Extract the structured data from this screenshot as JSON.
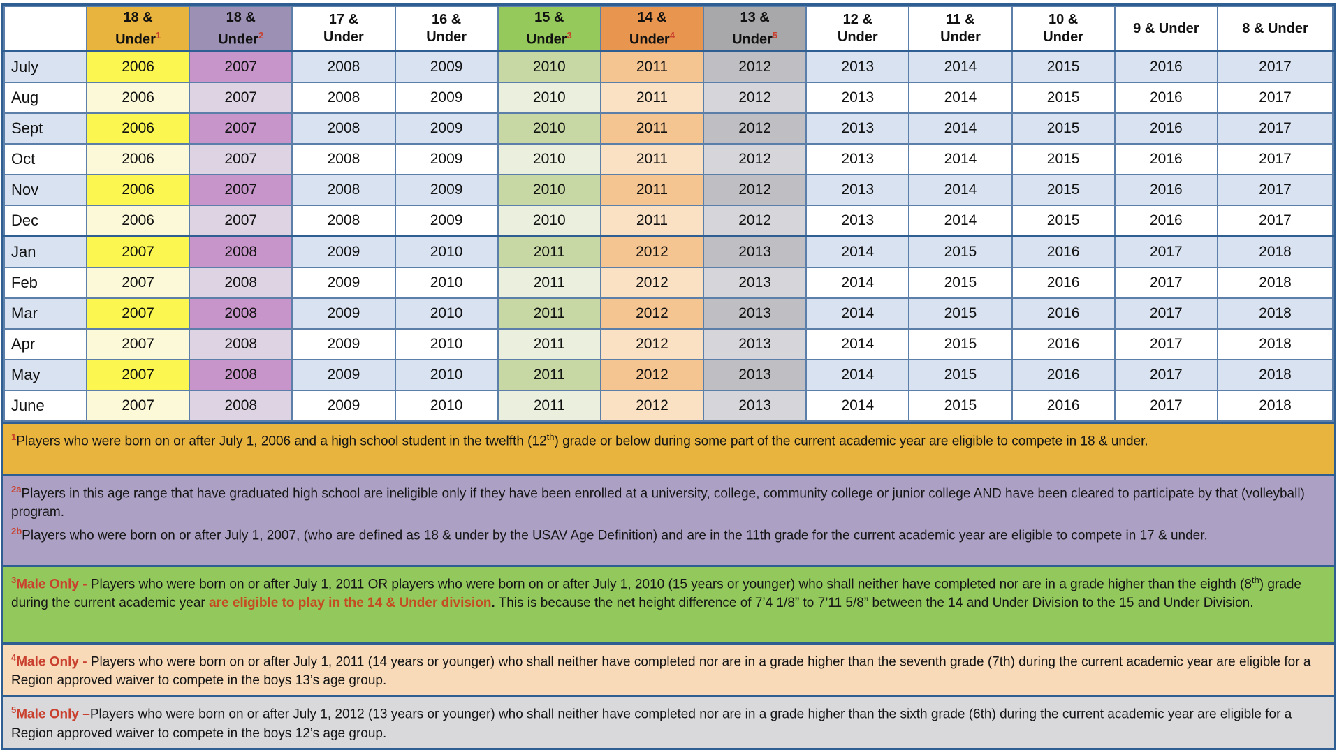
{
  "colors": {
    "border_thin": "#5B7FA8",
    "border_thick": "#2F5F92",
    "stripe_blue": "#D9E2F0",
    "white": "#FFFFFF",
    "red_marker": "#C9402E",
    "red_link": "#C44B22"
  },
  "table": {
    "months": [
      "July",
      "Aug",
      "Sept",
      "Oct",
      "Nov",
      "Dec",
      "Jan",
      "Feb",
      "Mar",
      "Apr",
      "May",
      "June"
    ],
    "columns": [
      {
        "header_line1": "18 &",
        "header_line2": "Under",
        "footnote_ref": "1",
        "header_bg": "#E8B43D",
        "cell_bg_odd": "#FBF750",
        "cell_bg_even": "#FBF9D8",
        "year_jul_dec": "2006",
        "year_jan_jun": "2007"
      },
      {
        "header_line1": "18 &",
        "header_line2": "Under",
        "footnote_ref": "2",
        "header_bg": "#9C91B5",
        "cell_bg_odd": "#C795C9",
        "cell_bg_even": "#DDD3E3",
        "year_jul_dec": "2007",
        "year_jan_jun": "2008"
      },
      {
        "header_line1": "17 &",
        "header_line2": "Under",
        "footnote_ref": "",
        "header_bg": "#FFFFFF",
        "cell_bg_odd": "#D9E2F0",
        "cell_bg_even": "#FFFFFF",
        "year_jul_dec": "2008",
        "year_jan_jun": "2009"
      },
      {
        "header_line1": "16 &",
        "header_line2": "Under",
        "footnote_ref": "",
        "header_bg": "#FFFFFF",
        "cell_bg_odd": "#D9E2F0",
        "cell_bg_even": "#FFFFFF",
        "year_jul_dec": "2009",
        "year_jan_jun": "2010"
      },
      {
        "header_line1": "15 &",
        "header_line2": "Under",
        "footnote_ref": "3",
        "header_bg": "#95C95B",
        "cell_bg_odd": "#C7D8A4",
        "cell_bg_even": "#EAF0DD",
        "year_jul_dec": "2010",
        "year_jan_jun": "2011"
      },
      {
        "header_line1": "14 &",
        "header_line2": "Under",
        "footnote_ref": "4",
        "header_bg": "#E8954F",
        "cell_bg_odd": "#F4C491",
        "cell_bg_even": "#FAE1C4",
        "year_jul_dec": "2011",
        "year_jan_jun": "2012"
      },
      {
        "header_line1": "13 &",
        "header_line2": "Under",
        "footnote_ref": "5",
        "header_bg": "#A8A8AA",
        "cell_bg_odd": "#BFBFC3",
        "cell_bg_even": "#D6D6DA",
        "year_jul_dec": "2012",
        "year_jan_jun": "2013"
      },
      {
        "header_line1": "12 &",
        "header_line2": "Under",
        "footnote_ref": "",
        "header_bg": "#FFFFFF",
        "cell_bg_odd": "#D9E2F0",
        "cell_bg_even": "#FFFFFF",
        "year_jul_dec": "2013",
        "year_jan_jun": "2014"
      },
      {
        "header_line1": "11 &",
        "header_line2": "Under",
        "footnote_ref": "",
        "header_bg": "#FFFFFF",
        "cell_bg_odd": "#D9E2F0",
        "cell_bg_even": "#FFFFFF",
        "year_jul_dec": "2014",
        "year_jan_jun": "2015"
      },
      {
        "header_line1": "10 &",
        "header_line2": "Under",
        "footnote_ref": "",
        "header_bg": "#FFFFFF",
        "cell_bg_odd": "#D9E2F0",
        "cell_bg_even": "#FFFFFF",
        "year_jul_dec": "2015",
        "year_jan_jun": "2016"
      },
      {
        "header_line1": "9 & Under",
        "header_line2": "",
        "footnote_ref": "",
        "header_bg": "#FFFFFF",
        "cell_bg_odd": "#D9E2F0",
        "cell_bg_even": "#FFFFFF",
        "year_jul_dec": "2016",
        "year_jan_jun": "2017"
      },
      {
        "header_line1": "8 & Under",
        "header_line2": "",
        "footnote_ref": "",
        "header_bg": "#FFFFFF",
        "cell_bg_odd": "#D9E2F0",
        "cell_bg_even": "#FFFFFF",
        "year_jul_dec": "2017",
        "year_jan_jun": "2018"
      }
    ]
  },
  "footnotes": [
    {
      "id": "1",
      "bg": "#E8B43D",
      "paragraphs": [
        [
          {
            "s": "supred",
            "t": "1"
          },
          {
            "s": "n",
            "t": "Players who were born on or after July 1, 2006 "
          },
          {
            "s": "u",
            "t": "and"
          },
          {
            "s": "n",
            "t": " a high school student in the twelfth (12"
          },
          {
            "s": "sup",
            "t": "th"
          },
          {
            "s": "n",
            "t": ") grade or below during some part of the current academic year are eligible to compete in 18 & under."
          }
        ]
      ]
    },
    {
      "id": "2",
      "bg": "#ACA1C4",
      "paragraphs": [
        [
          {
            "s": "supred",
            "t": "2a"
          },
          {
            "s": "n",
            "t": "Players in this age range that have graduated high school are ineligible only if they have been enrolled at a university, college, community college or junior college AND have been cleared to participate by that (volleyball) program."
          }
        ],
        [
          {
            "s": "supred",
            "t": "2b"
          },
          {
            "s": "n",
            "t": "Players who were born on or after July 1, 2007, (who are defined as 18 & under by the USAV Age Definition) and are in the 11th grade for the current academic year are eligible to compete in 17 & under."
          }
        ]
      ]
    },
    {
      "id": "3",
      "bg": "#92C85C",
      "paragraphs": [
        [
          {
            "s": "supred",
            "t": "3"
          },
          {
            "s": "rb",
            "t": "Male Only - "
          },
          {
            "s": "n",
            "t": "Players who were born on or after July 1, 2011 "
          },
          {
            "s": "u",
            "t": "OR"
          },
          {
            "s": "n",
            "t": " players who were born on or after July 1, 2010 (15 years or younger) who shall neither have completed nor are in a grade higher than the eighth (8"
          },
          {
            "s": "sup",
            "t": "th"
          },
          {
            "s": "n",
            "t": ") grade during the current academic year "
          },
          {
            "s": "rbu",
            "t": "are eligible to play in the 14 & Under division"
          },
          {
            "s": "b",
            "t": "."
          },
          {
            "s": "n",
            "t": "  This is  because the net height difference of 7’4 1/8” to 7’11 5/8” between the 14 and Under Division to the 15 and Under Division."
          }
        ]
      ]
    },
    {
      "id": "4",
      "bg": "#F8DAB9",
      "paragraphs": [
        [
          {
            "s": "supred",
            "t": "4"
          },
          {
            "s": "rb",
            "t": "Male Only - "
          },
          {
            "s": "n",
            "t": "Players who were born on or after July 1, 2011 (14 years or younger) who shall neither have completed nor are in a grade higher than the seventh grade (7th) during the current academic year are eligible for a Region approved waiver to compete in the boys 13’s age group."
          }
        ]
      ]
    },
    {
      "id": "5",
      "bg": "#D9D9DC",
      "paragraphs": [
        [
          {
            "s": "supred",
            "t": "5"
          },
          {
            "s": "rb",
            "t": "Male Only –"
          },
          {
            "s": "n",
            "t": "Players who were born on or after July 1, 2012 (13 years or younger) who shall neither have completed nor are in a grade higher than the sixth grade (6th) during the current academic year are eligible for a Region approved waiver to compete in the boys 12’s age group."
          }
        ]
      ]
    }
  ]
}
